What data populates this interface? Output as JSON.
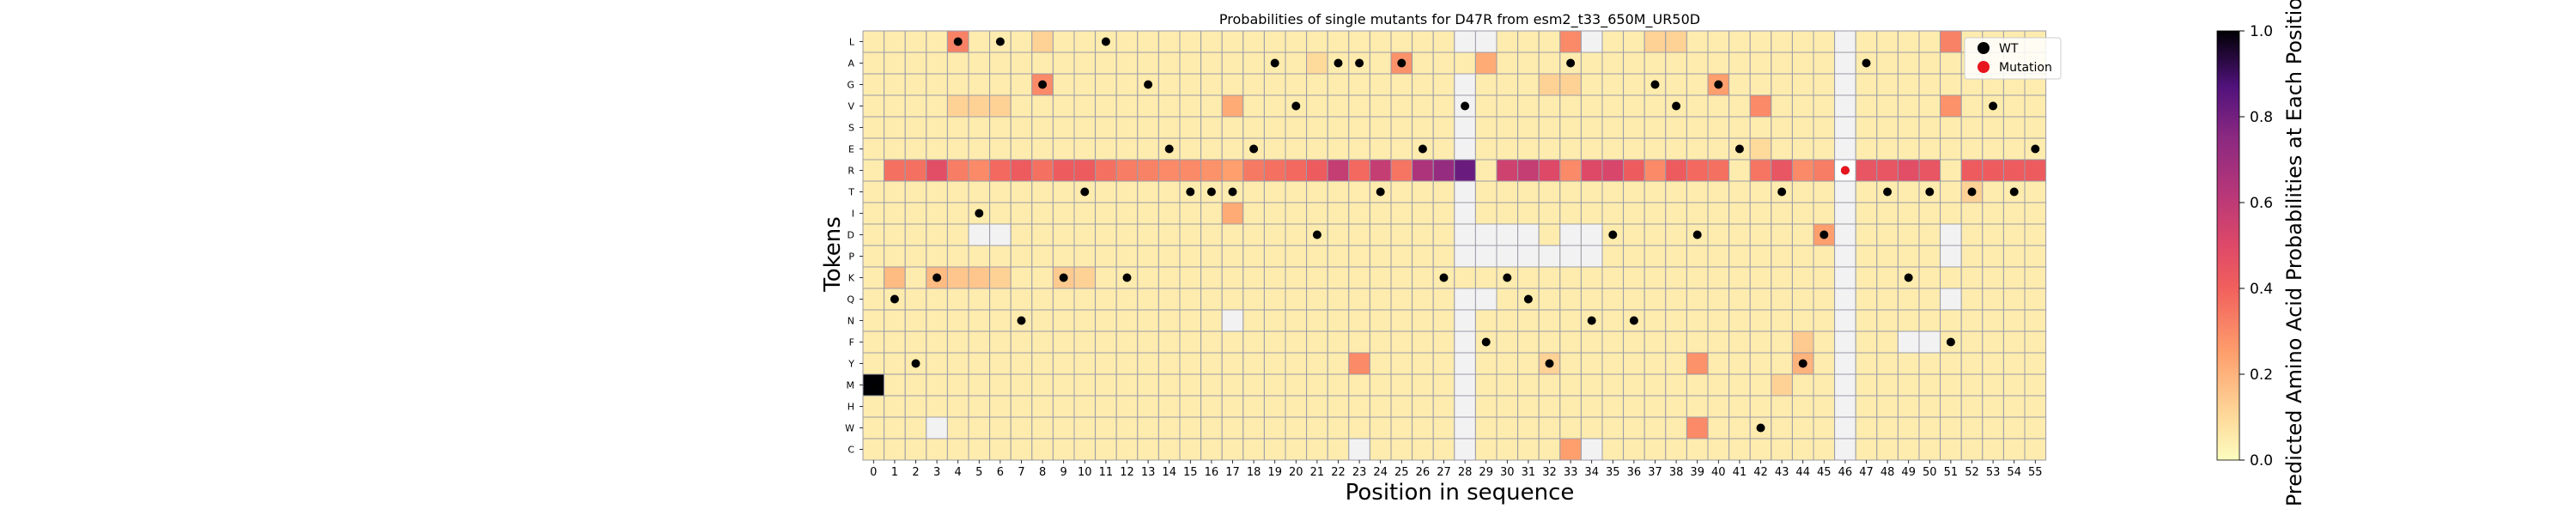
{
  "chart_data": {
    "type": "heatmap",
    "title": "Probabilities of single mutants for D47R from esm2_t33_650M_UR50D",
    "xlabel": "Position in sequence",
    "ylabel": "Tokens",
    "colorbar_label": "Predicted Amino Acid Probabilities at Each Position",
    "colorbar_ticks": [
      "0.0",
      "0.2",
      "0.4",
      "0.6",
      "0.8",
      "1.0"
    ],
    "colormap": "magma_r",
    "positions": [
      "0",
      "1",
      "2",
      "3",
      "4",
      "5",
      "6",
      "7",
      "8",
      "9",
      "10",
      "11",
      "12",
      "13",
      "14",
      "15",
      "16",
      "17",
      "18",
      "19",
      "20",
      "21",
      "22",
      "23",
      "24",
      "25",
      "26",
      "27",
      "28",
      "29",
      "30",
      "31",
      "32",
      "33",
      "34",
      "35",
      "36",
      "37",
      "38",
      "39",
      "40",
      "41",
      "42",
      "43",
      "44",
      "45",
      "46",
      "47",
      "48",
      "49",
      "50",
      "51",
      "52",
      "53",
      "54",
      "55"
    ],
    "tokens": [
      "L",
      "A",
      "G",
      "V",
      "S",
      "E",
      "R",
      "T",
      "I",
      "D",
      "P",
      "K",
      "Q",
      "N",
      "F",
      "Y",
      "M",
      "H",
      "W",
      "C"
    ],
    "wild_type": [
      "M",
      "Q",
      "Y",
      "K",
      "L",
      "I",
      "L",
      "N",
      "G",
      "K",
      "T",
      "L",
      "K",
      "G",
      "E",
      "T",
      "T",
      "T",
      "E",
      "A",
      "V",
      "D",
      "A",
      "A",
      "T",
      "A",
      "E",
      "K",
      "V",
      "F",
      "K",
      "Q",
      "Y",
      "A",
      "N",
      "D",
      "N",
      "G",
      "V",
      "D",
      "G",
      "E",
      "W",
      "T",
      "Y",
      "D",
      "R",
      "A",
      "T",
      "K",
      "T",
      "F",
      "T",
      "V",
      "T",
      "E"
    ],
    "mutation": {
      "position": 46,
      "token": "R"
    },
    "legend": {
      "placement": "top-right",
      "wt_label": "WT",
      "mutation_label": "Mutation"
    },
    "colors": {
      "wt_marker": "#000000",
      "mutation_marker": "#e8141e",
      "grid": "#9a9aa6",
      "low_prob_gray": "#f2f2f2"
    },
    "base_prob": 0.05,
    "r_row_probs": [
      0.05,
      0.36,
      0.36,
      0.48,
      0.33,
      0.3,
      0.38,
      0.42,
      0.36,
      0.42,
      0.42,
      0.36,
      0.33,
      0.32,
      0.3,
      0.3,
      0.28,
      0.25,
      0.34,
      0.36,
      0.38,
      0.42,
      0.58,
      0.38,
      0.58,
      0.35,
      0.65,
      0.72,
      0.82,
      0.05,
      0.55,
      0.58,
      0.5,
      0.3,
      0.5,
      0.52,
      0.42,
      0.3,
      0.42,
      0.38,
      0.36,
      0.05,
      0.35,
      0.45,
      0.3,
      0.33,
      0.02,
      0.45,
      0.45,
      0.48,
      0.45,
      0.05,
      0.42,
      0.42,
      0.42,
      0.42
    ],
    "cell_overrides": [
      {
        "token": "M",
        "position": 0,
        "p": 1.0
      },
      {
        "token": "L",
        "position": 4,
        "p": 0.32
      },
      {
        "token": "L",
        "position": 33,
        "p": 0.3
      },
      {
        "token": "L",
        "position": 51,
        "p": 0.32
      },
      {
        "token": "A",
        "position": 25,
        "p": 0.28
      },
      {
        "token": "A",
        "position": 29,
        "p": 0.22
      },
      {
        "token": "G",
        "position": 8,
        "p": 0.3
      },
      {
        "token": "G",
        "position": 40,
        "p": 0.25
      },
      {
        "token": "V",
        "position": 17,
        "p": 0.22
      },
      {
        "token": "V",
        "position": 42,
        "p": 0.3
      },
      {
        "token": "V",
        "position": 51,
        "p": 0.28
      },
      {
        "token": "I",
        "position": 17,
        "p": 0.22
      },
      {
        "token": "D",
        "position": 45,
        "p": 0.25
      },
      {
        "token": "K",
        "position": 1,
        "p": 0.18
      },
      {
        "token": "K",
        "position": 3,
        "p": 0.18
      },
      {
        "token": "K",
        "position": 4,
        "p": 0.15
      },
      {
        "token": "K",
        "position": 5,
        "p": 0.15
      },
      {
        "token": "Y",
        "position": 23,
        "p": 0.3
      },
      {
        "token": "Y",
        "position": 39,
        "p": 0.28
      },
      {
        "token": "Y",
        "position": 44,
        "p": 0.2
      },
      {
        "token": "W",
        "position": 39,
        "p": 0.3
      },
      {
        "token": "C",
        "position": 33,
        "p": 0.25
      },
      {
        "token": "L",
        "position": 8,
        "p": 0.12
      },
      {
        "token": "L",
        "position": 29,
        "p": 0.15
      },
      {
        "token": "L",
        "position": 37,
        "p": 0.12
      },
      {
        "token": "L",
        "position": 38,
        "p": 0.12
      },
      {
        "token": "V",
        "position": 4,
        "p": 0.12
      },
      {
        "token": "V",
        "position": 5,
        "p": 0.12
      },
      {
        "token": "V",
        "position": 6,
        "p": 0.12
      },
      {
        "token": "K",
        "position": 6,
        "p": 0.12
      },
      {
        "token": "K",
        "position": 9,
        "p": 0.14
      },
      {
        "token": "K",
        "position": 10,
        "p": 0.12
      },
      {
        "token": "G",
        "position": 32,
        "p": 0.12
      },
      {
        "token": "G",
        "position": 33,
        "p": 0.12
      },
      {
        "token": "Y",
        "position": 32,
        "p": 0.12
      },
      {
        "token": "M",
        "position": 43,
        "p": 0.12
      },
      {
        "token": "F",
        "position": 44,
        "p": 0.14
      },
      {
        "token": "T",
        "position": 52,
        "p": 0.12
      },
      {
        "token": "E",
        "position": 42,
        "p": 0.1
      },
      {
        "token": "A",
        "position": 21,
        "p": 0.1
      }
    ],
    "gray_cells": [
      {
        "token": "L",
        "positions": [
          28,
          29,
          34,
          46
        ]
      },
      {
        "token": "A",
        "positions": [
          46
        ]
      },
      {
        "token": "G",
        "positions": [
          28,
          46
        ]
      },
      {
        "token": "V",
        "positions": [
          28,
          46
        ]
      },
      {
        "token": "S",
        "positions": [
          28,
          46
        ]
      },
      {
        "token": "E",
        "positions": [
          28,
          46
        ]
      },
      {
        "token": "T",
        "positions": [
          28,
          46
        ]
      },
      {
        "token": "I",
        "positions": [
          28,
          46
        ]
      },
      {
        "token": "D",
        "positions": [
          5,
          6,
          28,
          29,
          30,
          31,
          33,
          34,
          46,
          51
        ]
      },
      {
        "token": "P",
        "positions": [
          28,
          29,
          30,
          31,
          32,
          33,
          34,
          46,
          51
        ]
      },
      {
        "token": "K",
        "positions": [
          46
        ]
      },
      {
        "token": "Q",
        "positions": [
          28,
          29,
          46,
          51
        ]
      },
      {
        "token": "N",
        "positions": [
          17,
          28,
          46
        ]
      },
      {
        "token": "F",
        "positions": [
          28,
          46,
          49,
          50
        ]
      },
      {
        "token": "Y",
        "positions": [
          28,
          46
        ]
      },
      {
        "token": "M",
        "positions": [
          28,
          46
        ]
      },
      {
        "token": "H",
        "positions": [
          28,
          46
        ]
      },
      {
        "token": "W",
        "positions": [
          3,
          28,
          46
        ]
      },
      {
        "token": "C",
        "positions": [
          23,
          28,
          34,
          46
        ]
      }
    ]
  }
}
